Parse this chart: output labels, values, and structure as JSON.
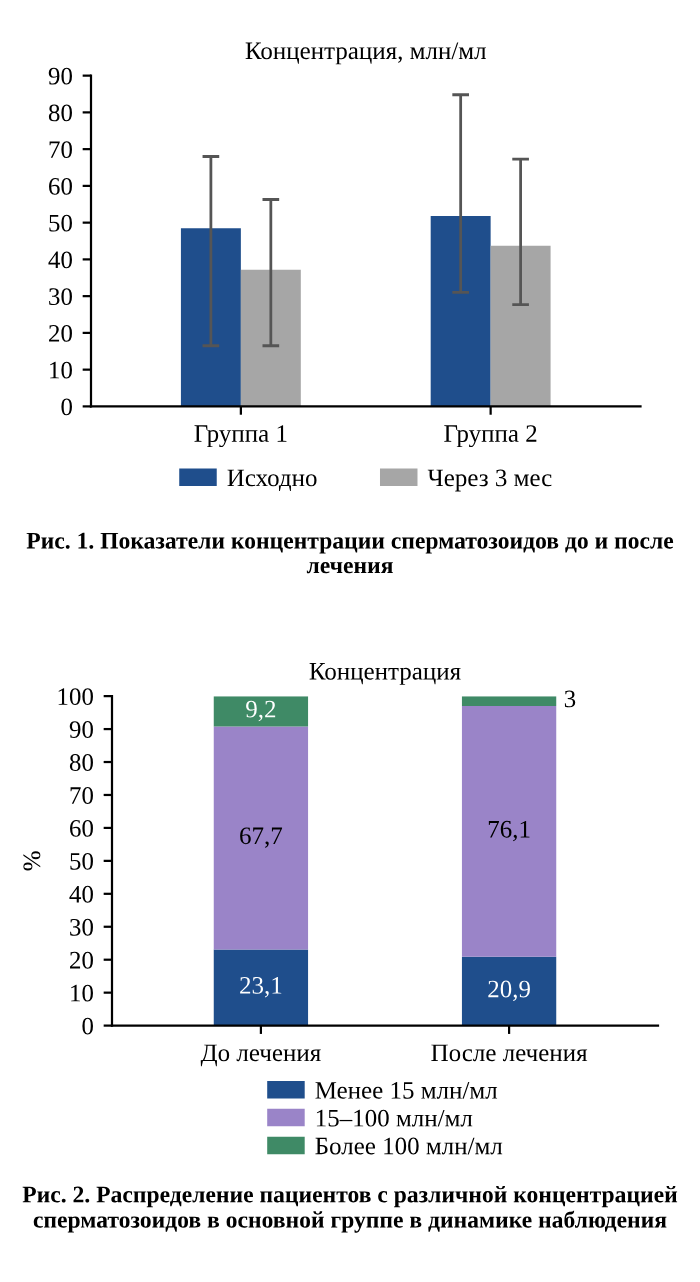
{
  "chart_data": [
    {
      "type": "bar",
      "title": "Концентрация, млн/мл",
      "categories": [
        "Группа 1",
        "Группа 2"
      ],
      "series": [
        {
          "name": "Исходно",
          "color": "#1f4e8c",
          "values": [
            48.5,
            51.8
          ],
          "errors": [
            [
              16.5,
              68
            ],
            [
              31,
              84.8
            ]
          ]
        },
        {
          "name": "Через 3 мес",
          "color": "#a6a6a6",
          "values": [
            37.2,
            43.7
          ],
          "errors": [
            [
              16.5,
              56.3
            ],
            [
              27.7,
              67.3
            ]
          ]
        }
      ],
      "ylim": [
        0,
        90
      ],
      "yticks": [
        0,
        10,
        20,
        30,
        40,
        50,
        60,
        70,
        80,
        90
      ],
      "grid": false,
      "legend": "bottom",
      "annotations": [
        "Рис. 1. Показатели концентрации сперматозоидов до и после лечения"
      ]
    },
    {
      "type": "bar",
      "title": "Концентрация",
      "ylabel": "%",
      "categories": [
        "До лечения",
        "После лечения"
      ],
      "stacked": true,
      "series": [
        {
          "name": "Менее 15 млн/мл",
          "color": "#1f4e8c",
          "values": [
            23.1,
            20.9
          ],
          "value_labels": [
            "23,1",
            "20,9"
          ]
        },
        {
          "name": "15–100 млн/мл",
          "color": "#9a84c8",
          "values": [
            67.7,
            76.1
          ],
          "value_labels": [
            "67,7",
            "76,1"
          ]
        },
        {
          "name": "Более 100 млн/мл",
          "color": "#3f8a66",
          "values": [
            9.2,
            3
          ],
          "value_labels": [
            "9,2",
            "3"
          ]
        }
      ],
      "ylim": [
        0,
        100
      ],
      "yticks": [
        0,
        10,
        20,
        30,
        40,
        50,
        60,
        70,
        80,
        90,
        100
      ],
      "grid": false,
      "legend": "bottom",
      "annotations": [
        "Рис. 2. Распределение пациентов с различной концентрацией сперматозоидов в основной группе в динамике наблюдения"
      ]
    }
  ]
}
